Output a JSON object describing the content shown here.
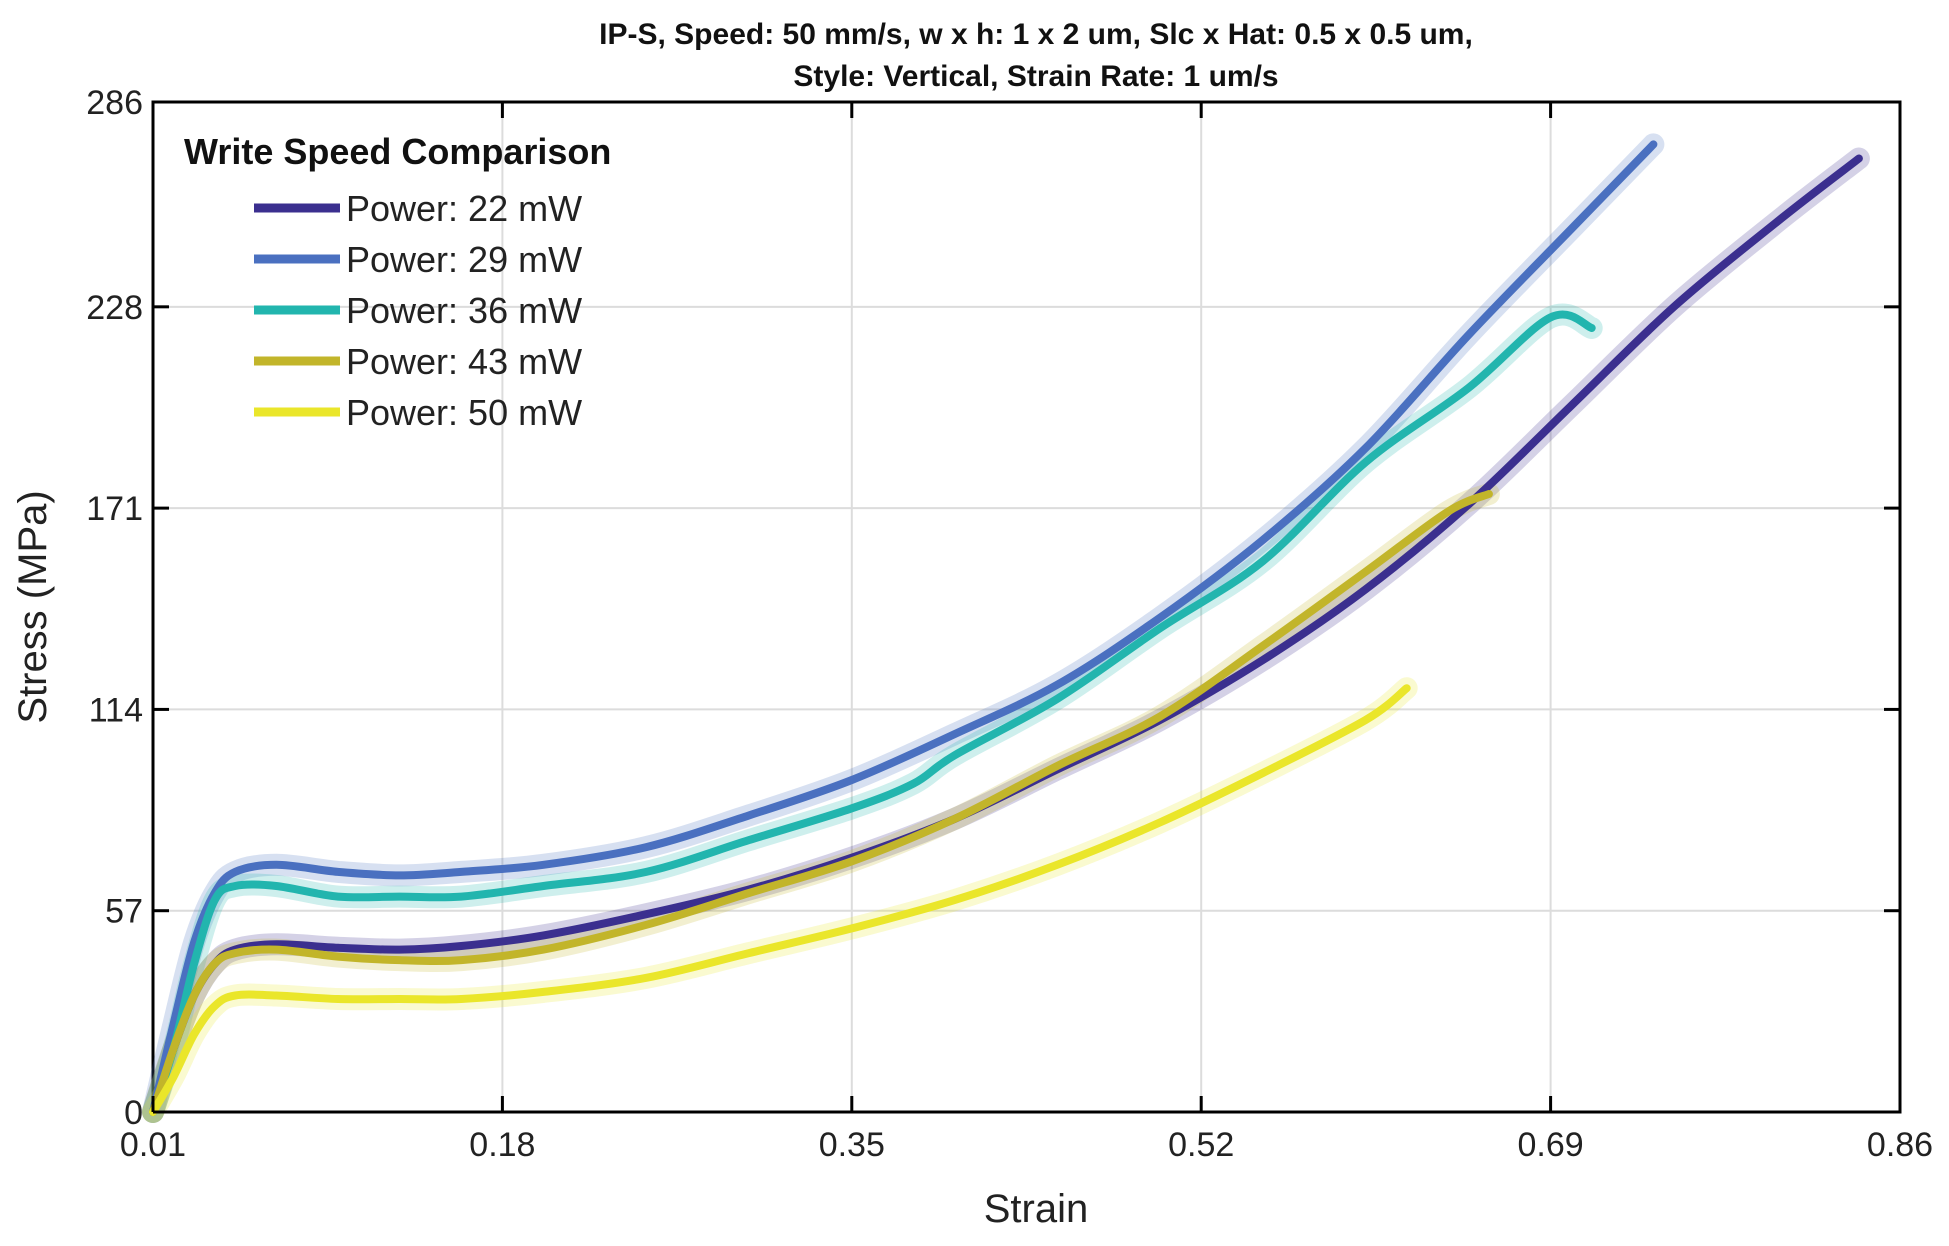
{
  "chart_data": {
    "type": "line",
    "title_lines": [
      "IP-S, Speed: 50 mm/s, w x h: 1 x 2 um, Slc x Hat: 0.5 x 0.5 um,",
      "Style: Vertical, Strain Rate: 1 um/s"
    ],
    "xlabel": "Strain",
    "ylabel": "Stress (MPa)",
    "xlim": [
      0.01,
      0.86
    ],
    "ylim": [
      0,
      286
    ],
    "xticks": [
      0.01,
      0.18,
      0.35,
      0.52,
      0.69,
      0.86
    ],
    "yticks": [
      0,
      57,
      114,
      171,
      228,
      286
    ],
    "xtick_labels": [
      "0.01",
      "0.18",
      "0.35",
      "0.52",
      "0.69",
      "0.86"
    ],
    "ytick_labels": [
      "0",
      "57",
      "114",
      "171",
      "228",
      "286"
    ],
    "grid": true,
    "legend": {
      "title": "Write Speed Comparison",
      "placement": "top-left"
    },
    "series": [
      {
        "name": "Power: 22 mW",
        "color": "#3b2f8f",
        "points": [
          [
            0.01,
            0
          ],
          [
            0.02,
            18
          ],
          [
            0.03,
            33
          ],
          [
            0.04,
            42
          ],
          [
            0.05,
            46
          ],
          [
            0.07,
            47.5
          ],
          [
            0.1,
            46.5
          ],
          [
            0.13,
            46
          ],
          [
            0.16,
            47
          ],
          [
            0.2,
            50
          ],
          [
            0.25,
            56
          ],
          [
            0.3,
            63
          ],
          [
            0.35,
            72
          ],
          [
            0.4,
            83
          ],
          [
            0.45,
            97
          ],
          [
            0.5,
            111
          ],
          [
            0.55,
            128
          ],
          [
            0.6,
            148
          ],
          [
            0.65,
            172
          ],
          [
            0.7,
            200
          ],
          [
            0.75,
            228
          ],
          [
            0.8,
            252
          ],
          [
            0.84,
            270
          ]
        ]
      },
      {
        "name": "Power: 29 mW",
        "color": "#4a70c0",
        "points": [
          [
            0.01,
            0
          ],
          [
            0.02,
            25
          ],
          [
            0.03,
            48
          ],
          [
            0.04,
            62
          ],
          [
            0.05,
            68
          ],
          [
            0.07,
            70
          ],
          [
            0.1,
            68
          ],
          [
            0.13,
            67
          ],
          [
            0.16,
            68
          ],
          [
            0.2,
            70
          ],
          [
            0.25,
            75
          ],
          [
            0.3,
            84
          ],
          [
            0.35,
            94
          ],
          [
            0.4,
            107
          ],
          [
            0.45,
            121
          ],
          [
            0.5,
            140
          ],
          [
            0.55,
            162
          ],
          [
            0.6,
            188
          ],
          [
            0.65,
            220
          ],
          [
            0.7,
            250
          ],
          [
            0.74,
            274
          ]
        ]
      },
      {
        "name": "Power: 36 mW",
        "color": "#22b5ae",
        "points": [
          [
            0.01,
            0
          ],
          [
            0.02,
            18
          ],
          [
            0.03,
            42
          ],
          [
            0.04,
            60
          ],
          [
            0.05,
            64
          ],
          [
            0.07,
            64
          ],
          [
            0.1,
            61
          ],
          [
            0.13,
            61
          ],
          [
            0.16,
            61
          ],
          [
            0.2,
            64
          ],
          [
            0.25,
            68
          ],
          [
            0.3,
            77
          ],
          [
            0.35,
            86
          ],
          [
            0.38,
            93
          ],
          [
            0.4,
            101
          ],
          [
            0.45,
            117
          ],
          [
            0.5,
            137
          ],
          [
            0.55,
            156
          ],
          [
            0.6,
            184
          ],
          [
            0.65,
            205
          ],
          [
            0.69,
            225
          ],
          [
            0.71,
            222
          ]
        ]
      },
      {
        "name": "Power: 43 mW",
        "color": "#c2b52a",
        "points": [
          [
            0.01,
            0
          ],
          [
            0.02,
            18
          ],
          [
            0.03,
            33
          ],
          [
            0.04,
            42
          ],
          [
            0.05,
            45
          ],
          [
            0.07,
            46
          ],
          [
            0.1,
            44
          ],
          [
            0.13,
            43
          ],
          [
            0.16,
            43
          ],
          [
            0.2,
            46
          ],
          [
            0.25,
            53
          ],
          [
            0.3,
            62
          ],
          [
            0.35,
            71
          ],
          [
            0.4,
            83
          ],
          [
            0.45,
            98
          ],
          [
            0.5,
            112
          ],
          [
            0.55,
            132
          ],
          [
            0.6,
            153
          ],
          [
            0.64,
            170
          ],
          [
            0.66,
            175
          ]
        ]
      },
      {
        "name": "Power: 50 mW",
        "color": "#eae62a",
        "points": [
          [
            0.01,
            0
          ],
          [
            0.02,
            10
          ],
          [
            0.03,
            22
          ],
          [
            0.04,
            30
          ],
          [
            0.05,
            33
          ],
          [
            0.07,
            33
          ],
          [
            0.1,
            32
          ],
          [
            0.13,
            32
          ],
          [
            0.16,
            32
          ],
          [
            0.2,
            34
          ],
          [
            0.25,
            38
          ],
          [
            0.3,
            45
          ],
          [
            0.35,
            52
          ],
          [
            0.4,
            60
          ],
          [
            0.45,
            70
          ],
          [
            0.5,
            82
          ],
          [
            0.55,
            96
          ],
          [
            0.6,
            111
          ],
          [
            0.62,
            120
          ]
        ]
      }
    ]
  }
}
